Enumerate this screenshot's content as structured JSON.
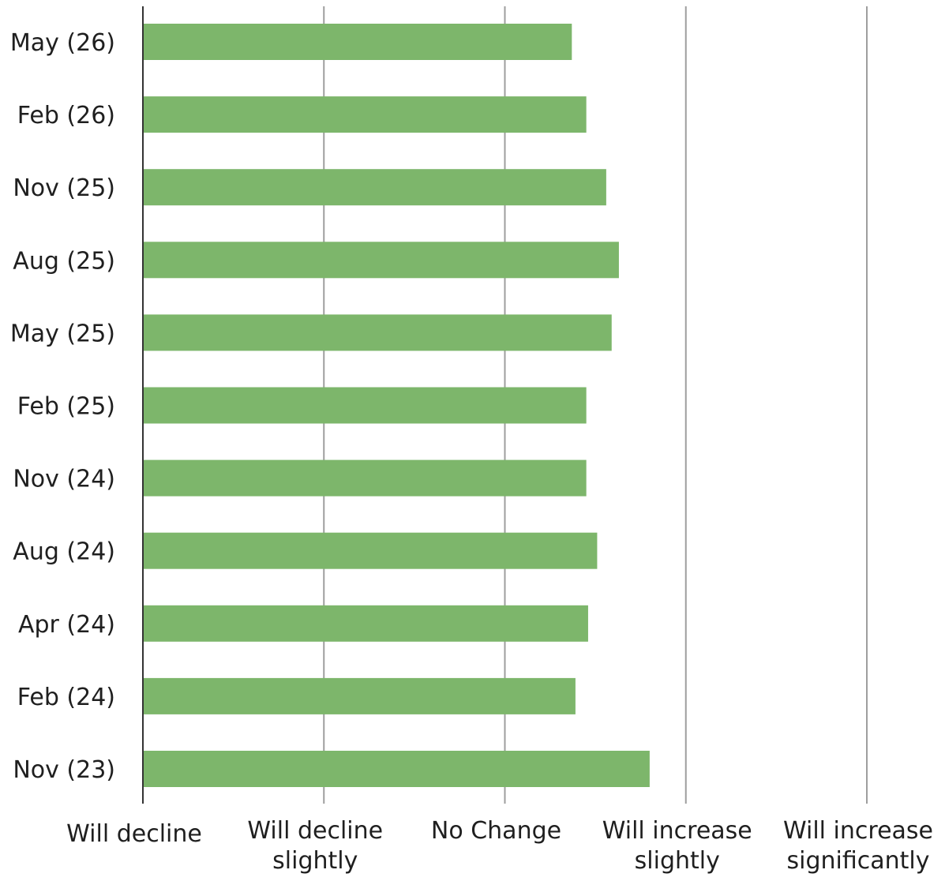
{
  "chart_data": {
    "type": "bar",
    "orientation": "horizontal",
    "categories": [
      "May (26)",
      "Feb (26)",
      "Nov (25)",
      "Aug (25)",
      "May (25)",
      "Feb (25)",
      "Nov (24)",
      "Aug (24)",
      "Apr (24)",
      "Feb (24)",
      "Nov (23)"
    ],
    "values": [
      3.37,
      3.45,
      3.56,
      3.63,
      3.59,
      3.45,
      3.45,
      3.51,
      3.46,
      3.39,
      3.8
    ],
    "x_ticks": [
      {
        "value": 1,
        "lines": [
          "Will decline"
        ]
      },
      {
        "value": 2,
        "lines": [
          "Will decline",
          "slightly"
        ]
      },
      {
        "value": 3,
        "lines": [
          "No Change"
        ]
      },
      {
        "value": 4,
        "lines": [
          "Will increase",
          "slightly"
        ]
      },
      {
        "value": 5,
        "lines": [
          "Will increase",
          "significantly"
        ]
      }
    ],
    "xlim": [
      1,
      5
    ],
    "title": "",
    "xlabel": "",
    "ylabel": "",
    "grid": "vertical",
    "legend": "none",
    "bar_color": "#7db66b",
    "grid_color": "#9e9e9e",
    "axis_color": "#333333"
  }
}
